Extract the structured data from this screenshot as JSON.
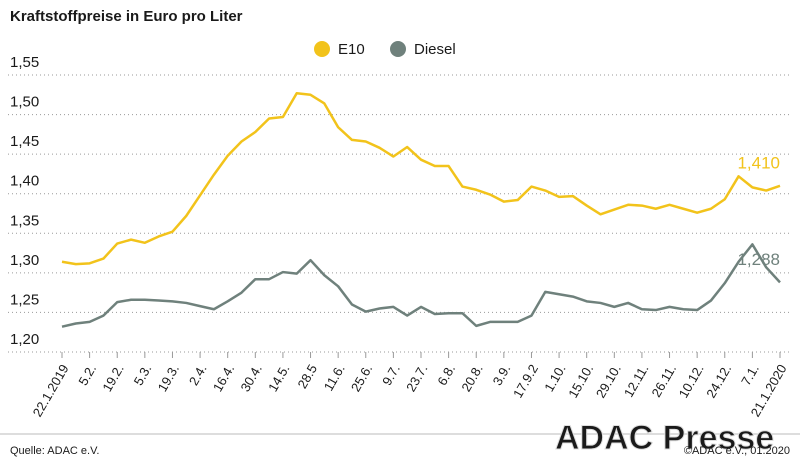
{
  "chart_data": {
    "type": "line",
    "title": "Kraftstoffpreise in Euro pro Liter",
    "source": "Quelle: ADAC e.V.",
    "copyright": "©ADAC e.V., 01.2020",
    "watermark": "ADAC Presse",
    "categories": [
      "22.1.2019",
      null,
      "5.2.",
      null,
      "19.2.",
      null,
      "5.3.",
      null,
      "19.3.",
      null,
      "2.4.",
      null,
      "16.4.",
      null,
      "30.4.",
      null,
      "14.5.",
      null,
      "28.5",
      null,
      "11.6.",
      null,
      "25.6.",
      null,
      "9.7.",
      null,
      "23.7.",
      null,
      "6.8.",
      null,
      "20.8.",
      null,
      "3.9.",
      null,
      "17.9.2",
      null,
      "1.10.",
      null,
      "15.10.",
      null,
      "29.10.",
      null,
      "12.11.",
      null,
      "26.11.",
      null,
      "10.12.",
      null,
      "24.12.",
      null,
      "7.1.",
      null,
      "21.1.2020"
    ],
    "series": [
      {
        "name": "E10",
        "color": "#f2c31b",
        "values": [
          1.314,
          1.311,
          1.312,
          1.318,
          1.337,
          1.342,
          1.338,
          1.346,
          1.352,
          1.372,
          1.398,
          1.424,
          1.448,
          1.466,
          1.478,
          1.495,
          1.497,
          1.527,
          1.525,
          1.514,
          1.484,
          1.468,
          1.466,
          1.458,
          1.447,
          1.459,
          1.443,
          1.435,
          1.435,
          1.409,
          1.405,
          1.399,
          1.39,
          1.392,
          1.409,
          1.404,
          1.396,
          1.397,
          1.385,
          1.374,
          1.38,
          1.386,
          1.385,
          1.381,
          1.386,
          1.381,
          1.376,
          1.381,
          1.393,
          1.422,
          1.408,
          1.404,
          1.41
        ],
        "value_labels": [
          null,
          null,
          null,
          null,
          null,
          null,
          null,
          null,
          null,
          null,
          null,
          null,
          null,
          null,
          null,
          null,
          null,
          null,
          null,
          null,
          null,
          null,
          null,
          null,
          null,
          null,
          null,
          null,
          null,
          null,
          null,
          null,
          null,
          null,
          null,
          null,
          null,
          null,
          null,
          null,
          null,
          null,
          null,
          null,
          null,
          null,
          null,
          null,
          null,
          null,
          null,
          null,
          "1,410"
        ]
      },
      {
        "name": "Diesel",
        "color": "#6f817c",
        "values": [
          1.232,
          1.236,
          1.238,
          1.246,
          1.263,
          1.266,
          1.266,
          1.265,
          1.264,
          1.262,
          1.258,
          1.254,
          1.264,
          1.275,
          1.292,
          1.292,
          1.301,
          1.299,
          1.316,
          1.297,
          1.283,
          1.26,
          1.251,
          1.255,
          1.257,
          1.246,
          1.257,
          1.248,
          1.249,
          1.249,
          1.233,
          1.238,
          1.238,
          1.238,
          1.246,
          1.276,
          1.273,
          1.27,
          1.264,
          1.262,
          1.257,
          1.262,
          1.254,
          1.253,
          1.257,
          1.254,
          1.253,
          1.265,
          1.287,
          1.314,
          1.336,
          1.307,
          1.288
        ],
        "value_labels": [
          null,
          null,
          null,
          null,
          null,
          null,
          null,
          null,
          null,
          null,
          null,
          null,
          null,
          null,
          null,
          null,
          null,
          null,
          null,
          null,
          null,
          null,
          null,
          null,
          null,
          null,
          null,
          null,
          null,
          null,
          null,
          null,
          null,
          null,
          null,
          null,
          null,
          null,
          null,
          null,
          null,
          null,
          null,
          null,
          null,
          null,
          null,
          null,
          null,
          null,
          null,
          null,
          "1,288"
        ]
      }
    ],
    "ylim": [
      1.2,
      1.55
    ],
    "yticks": [
      {
        "value": 1.2,
        "label": "1,20"
      },
      {
        "value": 1.25,
        "label": "1,25"
      },
      {
        "value": 1.3,
        "label": "1,30"
      },
      {
        "value": 1.35,
        "label": "1,35"
      },
      {
        "value": 1.4,
        "label": "1,40"
      },
      {
        "value": 1.45,
        "label": "1,45"
      },
      {
        "value": 1.5,
        "label": "1,50"
      },
      {
        "value": 1.55,
        "label": "1,55"
      }
    ],
    "grid": true
  }
}
